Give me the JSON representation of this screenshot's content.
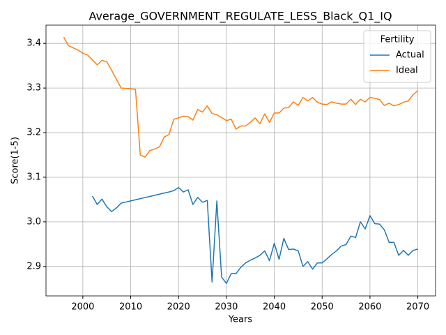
{
  "chart_data": {
    "type": "line",
    "title": "Average_GOVERNMENT_REGULATE_LESS_Black_Q1_IQ",
    "xlabel": "Years",
    "ylabel": "Score(1-5)",
    "x": [
      1996,
      1997,
      1998,
      1999,
      2000,
      2001,
      2002,
      2003,
      2004,
      2005,
      2006,
      2007,
      2008,
      2009,
      2010,
      2011,
      2012,
      2013,
      2014,
      2015,
      2016,
      2017,
      2018,
      2019,
      2020,
      2021,
      2022,
      2023,
      2024,
      2025,
      2026,
      2027,
      2028,
      2029,
      2030,
      2031,
      2032,
      2033,
      2034,
      2035,
      2036,
      2037,
      2038,
      2039,
      2040,
      2041,
      2042,
      2043,
      2044,
      2045,
      2046,
      2047,
      2048,
      2049,
      2050,
      2051,
      2052,
      2053,
      2054,
      2055,
      2056,
      2057,
      2058,
      2059,
      2060,
      2061,
      2062,
      2063,
      2064,
      2065,
      2066,
      2067,
      2068,
      2069,
      2070
    ],
    "series": [
      {
        "name": "Actual",
        "color": "#1f77b4",
        "values": [
          null,
          null,
          null,
          null,
          null,
          null,
          3.058,
          3.039,
          3.051,
          3.034,
          3.023,
          3.031,
          3.042,
          3.0445,
          3.047,
          3.0495,
          3.052,
          3.0545,
          3.057,
          3.0595,
          3.062,
          3.0645,
          3.067,
          3.07,
          3.077,
          3.067,
          3.072,
          3.039,
          3.055,
          3.044,
          3.048,
          2.865,
          3.047,
          2.876,
          2.862,
          2.884,
          2.884,
          2.898,
          2.908,
          2.914,
          2.919,
          2.925,
          2.935,
          2.913,
          2.952,
          2.916,
          2.963,
          2.938,
          2.939,
          2.935,
          2.9,
          2.911,
          2.894,
          2.908,
          2.908,
          2.917,
          2.927,
          2.935,
          2.946,
          2.949,
          2.968,
          2.965,
          3.0,
          2.984,
          3.014,
          2.996,
          2.995,
          2.982,
          2.954,
          2.954,
          2.925,
          2.936,
          2.925,
          2.936,
          2.939
        ]
      },
      {
        "name": "Ideal",
        "color": "#ff7f0e",
        "values": [
          3.414,
          3.395,
          3.39,
          3.385,
          3.378,
          3.374,
          3.363,
          3.352,
          3.362,
          3.359,
          3.34,
          3.32,
          3.3,
          3.299,
          3.298,
          3.297,
          3.15,
          3.145,
          3.16,
          3.163,
          3.168,
          3.19,
          3.196,
          3.23,
          3.233,
          3.237,
          3.236,
          3.228,
          3.252,
          3.246,
          3.26,
          3.243,
          3.24,
          3.234,
          3.227,
          3.23,
          3.208,
          3.215,
          3.215,
          3.223,
          3.233,
          3.22,
          3.242,
          3.223,
          3.244,
          3.244,
          3.255,
          3.256,
          3.269,
          3.261,
          3.279,
          3.271,
          3.279,
          3.268,
          3.264,
          3.263,
          3.269,
          3.266,
          3.264,
          3.264,
          3.275,
          3.263,
          3.275,
          3.269,
          3.279,
          3.277,
          3.274,
          3.261,
          3.266,
          3.26,
          3.263,
          3.268,
          3.271,
          3.285,
          3.294
        ]
      }
    ],
    "legend_title": "Fertility",
    "legend_position": "upper right",
    "xlim": [
      1992.3,
      2073.7
    ],
    "ylim": [
      2.834,
      3.441
    ],
    "xticks": [
      2000,
      2010,
      2020,
      2030,
      2040,
      2050,
      2060,
      2070
    ],
    "yticks": [
      2.9,
      {
        "value": 3,
        "label": "3.0"
      },
      3.1,
      3.2,
      3.3,
      3.4
    ],
    "grid": true
  }
}
